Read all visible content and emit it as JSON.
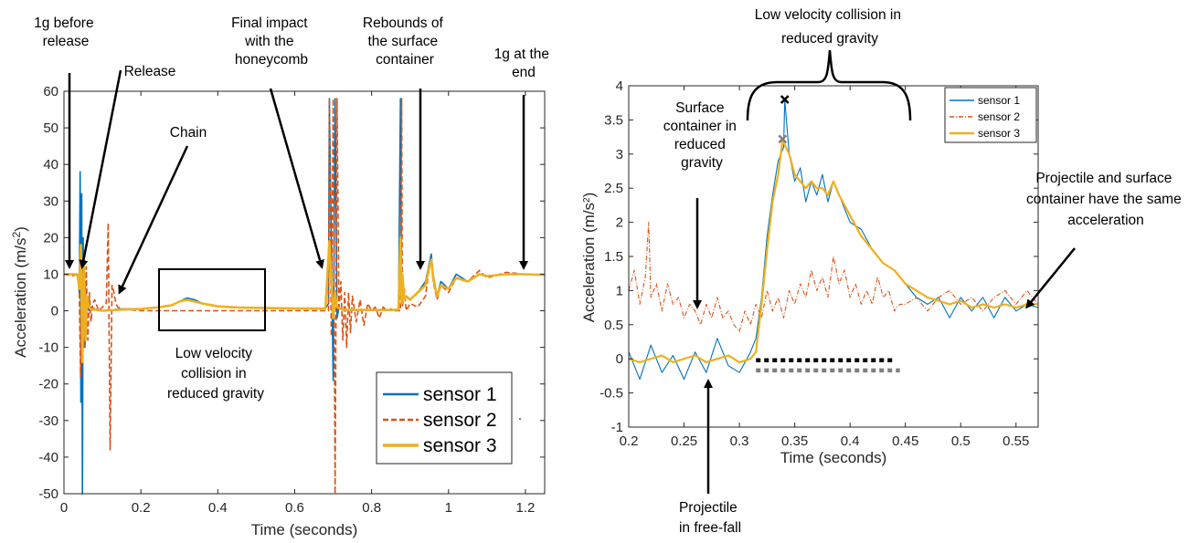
{
  "chart_data": [
    {
      "type": "line",
      "xlabel": "Time (seconds)",
      "ylabel": "Acceleration (m/s",
      "ylabel_sup": "2",
      "ylabel_close": ")",
      "xlim": [
        0,
        1.25
      ],
      "ylim": [
        -50,
        60
      ],
      "xticks": [
        0,
        0.2,
        0.4,
        0.6,
        0.8,
        1,
        1.2
      ],
      "xtick_labels": [
        "0",
        "0.2",
        "0.4",
        "0.6",
        "0.8",
        "1",
        "1.2"
      ],
      "yticks": [
        -50,
        -40,
        -30,
        -20,
        -10,
        0,
        10,
        20,
        30,
        40,
        50,
        60
      ],
      "ytick_labels": [
        "-50",
        "-40",
        "-30",
        "-20",
        "-10",
        "0",
        "10",
        "20",
        "30",
        "40",
        "50",
        "60"
      ],
      "legend_position": "bottom-right",
      "series": [
        {
          "name": "sensor 1",
          "color": "#0072BD",
          "style": "solid",
          "x": [
            0,
            0.02,
            0.035,
            0.04,
            0.042,
            0.044,
            0.046,
            0.048,
            0.05,
            0.052,
            0.055,
            0.058,
            0.06,
            0.065,
            0.07,
            0.08,
            0.1,
            0.15,
            0.2,
            0.25,
            0.28,
            0.3,
            0.32,
            0.34,
            0.36,
            0.38,
            0.4,
            0.45,
            0.5,
            0.55,
            0.6,
            0.68,
            0.688,
            0.69,
            0.7,
            0.705,
            0.71,
            0.715,
            0.72,
            0.73,
            0.74,
            0.76,
            0.8,
            0.85,
            0.87,
            0.875,
            0.878,
            0.88,
            0.885,
            0.89,
            0.9,
            0.92,
            0.94,
            0.95,
            0.955,
            0.96,
            0.97,
            0.98,
            1.0,
            1.02,
            1.05,
            1.08,
            1.1,
            1.15,
            1.2,
            1.25
          ],
          "y": [
            10,
            10,
            10,
            5,
            38,
            -25,
            32,
            -50,
            20,
            -10,
            8,
            -5,
            2,
            0,
            1,
            0.5,
            0,
            0.5,
            0.5,
            1,
            1.5,
            2.5,
            3.5,
            3,
            2,
            1.5,
            1.2,
            0.9,
            0.8,
            0.7,
            0.6,
            0.6,
            2,
            58,
            -19,
            58,
            -2,
            1,
            0.5,
            0.3,
            0.2,
            0.2,
            0.2,
            0.2,
            0.3,
            58,
            2,
            10,
            3,
            4,
            3,
            5,
            8,
            13,
            15.5,
            10,
            4,
            8,
            6,
            10,
            8,
            10,
            9.5,
            10,
            10,
            9.8
          ]
        },
        {
          "name": "sensor 2",
          "color": "#D95319",
          "style": "dashed",
          "x": [
            0,
            0.02,
            0.035,
            0.04,
            0.043,
            0.046,
            0.049,
            0.052,
            0.055,
            0.058,
            0.062,
            0.066,
            0.07,
            0.075,
            0.08,
            0.09,
            0.1,
            0.11,
            0.115,
            0.12,
            0.125,
            0.13,
            0.135,
            0.14,
            0.15,
            0.2,
            0.25,
            0.3,
            0.35,
            0.4,
            0.45,
            0.5,
            0.55,
            0.6,
            0.68,
            0.688,
            0.69,
            0.695,
            0.7,
            0.705,
            0.71,
            0.715,
            0.72,
            0.725,
            0.73,
            0.735,
            0.74,
            0.745,
            0.75,
            0.76,
            0.77,
            0.78,
            0.79,
            0.8,
            0.81,
            0.82,
            0.83,
            0.84,
            0.85,
            0.86,
            0.87,
            0.875,
            0.878,
            0.88,
            0.885,
            0.89,
            0.9,
            0.92,
            0.94,
            0.95,
            0.955,
            0.96,
            0.97,
            0.98,
            1.0,
            1.02,
            1.05,
            1.08,
            1.1,
            1.15,
            1.2,
            1.25
          ],
          "y": [
            10,
            9.5,
            10,
            5,
            -18,
            15,
            -5,
            8,
            -10,
            12,
            -8,
            5,
            -3,
            2,
            3,
            0,
            1,
            2,
            24,
            -38,
            7,
            5,
            2,
            1,
            0.5,
            0,
            0,
            0,
            0,
            0,
            0,
            0,
            0,
            0,
            0,
            0,
            58,
            -7,
            58,
            -50,
            58,
            0,
            8,
            -8,
            5,
            -10,
            5,
            -6,
            4,
            -3,
            3,
            -4,
            2,
            0,
            1,
            -2,
            1,
            0,
            0.5,
            0,
            0,
            0,
            58,
            1,
            6,
            0,
            2,
            1,
            4,
            12,
            14,
            8,
            3,
            7,
            5,
            9,
            8,
            11,
            9,
            10.5,
            10,
            10
          ]
        },
        {
          "name": "sensor 3",
          "color": "#EDB120",
          "style": "solid",
          "x": [
            0,
            0.02,
            0.035,
            0.04,
            0.044,
            0.048,
            0.052,
            0.056,
            0.06,
            0.065,
            0.07,
            0.08,
            0.1,
            0.15,
            0.2,
            0.25,
            0.28,
            0.3,
            0.32,
            0.34,
            0.36,
            0.4,
            0.45,
            0.5,
            0.55,
            0.6,
            0.68,
            0.688,
            0.69,
            0.7,
            0.705,
            0.71,
            0.72,
            0.73,
            0.76,
            0.8,
            0.85,
            0.87,
            0.875,
            0.878,
            0.88,
            0.885,
            0.89,
            0.9,
            0.92,
            0.94,
            0.95,
            0.955,
            0.96,
            0.97,
            0.98,
            1.0,
            1.02,
            1.05,
            1.08,
            1.1,
            1.15,
            1.2,
            1.25
          ],
          "y": [
            10,
            10,
            10,
            6,
            18,
            -14,
            12,
            -8,
            4,
            1,
            0.5,
            0.3,
            0,
            0.3,
            0.5,
            1,
            1.5,
            2.5,
            3,
            2.5,
            2,
            1.2,
            0.9,
            0.8,
            0.7,
            0.6,
            0.6,
            15,
            19,
            -2,
            5,
            1,
            0.5,
            0.3,
            0.2,
            0.2,
            0.2,
            0.3,
            20,
            2,
            10,
            3,
            4,
            3,
            5,
            7,
            12,
            14,
            9,
            4,
            7,
            6,
            9,
            8,
            10,
            9.5,
            10,
            10,
            9.8
          ]
        }
      ]
    },
    {
      "type": "line",
      "xlabel": "Time (seconds)",
      "ylabel": "Acceleration (m/s",
      "ylabel_sup": "2",
      "ylabel_close": ")",
      "xlim": [
        0.2,
        0.57
      ],
      "ylim": [
        -1,
        4
      ],
      "xticks": [
        0.2,
        0.25,
        0.3,
        0.35,
        0.4,
        0.45,
        0.5,
        0.55
      ],
      "xtick_labels": [
        "0.2",
        "0.25",
        "0.3",
        "0.35",
        "0.4",
        "0.45",
        "0.5",
        "0.55"
      ],
      "yticks": [
        -1,
        -0.5,
        0,
        0.5,
        1,
        1.5,
        2,
        2.5,
        3,
        3.5,
        4
      ],
      "ytick_labels": [
        "-1",
        "-0.5",
        "0",
        "0.5",
        "1",
        "1.5",
        "2",
        "2.5",
        "3",
        "3.5",
        "4"
      ],
      "legend_position": "top-right",
      "markers": [
        {
          "x": 0.341,
          "y": 3.8,
          "color": "#000000"
        },
        {
          "x": 0.339,
          "y": 3.22,
          "color": "#7f7f7f"
        }
      ],
      "segments": [
        {
          "x0": 0.315,
          "x1": 0.44,
          "y": -0.02,
          "color": "#000000"
        },
        {
          "x0": 0.315,
          "x1": 0.445,
          "y": -0.17,
          "color": "#7f7f7f"
        }
      ],
      "series": [
        {
          "name": "sensor 1",
          "color": "#0072BD",
          "style": "solid",
          "x": [
            0.2,
            0.21,
            0.22,
            0.23,
            0.24,
            0.25,
            0.26,
            0.27,
            0.28,
            0.29,
            0.3,
            0.31,
            0.315,
            0.32,
            0.325,
            0.33,
            0.335,
            0.34,
            0.341,
            0.345,
            0.35,
            0.355,
            0.36,
            0.365,
            0.37,
            0.375,
            0.38,
            0.385,
            0.39,
            0.4,
            0.41,
            0.42,
            0.43,
            0.44,
            0.45,
            0.46,
            0.47,
            0.48,
            0.49,
            0.5,
            0.51,
            0.52,
            0.53,
            0.54,
            0.55,
            0.56,
            0.57
          ],
          "y": [
            0.1,
            -0.3,
            0.2,
            -0.2,
            0.05,
            -0.3,
            0.1,
            -0.2,
            0.3,
            -0.1,
            -0.2,
            0.1,
            0.3,
            0.9,
            1.8,
            2.4,
            2.9,
            3.1,
            3.8,
            3.0,
            2.6,
            2.8,
            2.3,
            2.6,
            2.4,
            2.7,
            2.3,
            2.6,
            2.4,
            2.0,
            1.9,
            1.6,
            1.4,
            1.3,
            1.1,
            0.9,
            0.8,
            0.9,
            0.6,
            0.9,
            0.7,
            0.9,
            0.6,
            0.9,
            0.7,
            0.8,
            0.75
          ]
        },
        {
          "name": "sensor 2",
          "color": "#D95319",
          "style": "dashed",
          "x": [
            0.2,
            0.205,
            0.21,
            0.215,
            0.218,
            0.22,
            0.225,
            0.23,
            0.235,
            0.24,
            0.245,
            0.25,
            0.255,
            0.26,
            0.265,
            0.27,
            0.275,
            0.28,
            0.285,
            0.29,
            0.295,
            0.3,
            0.305,
            0.31,
            0.315,
            0.32,
            0.325,
            0.33,
            0.335,
            0.34,
            0.345,
            0.35,
            0.355,
            0.36,
            0.365,
            0.37,
            0.375,
            0.38,
            0.385,
            0.39,
            0.395,
            0.4,
            0.405,
            0.41,
            0.415,
            0.42,
            0.425,
            0.43,
            0.435,
            0.44,
            0.445,
            0.45,
            0.46,
            0.47,
            0.48,
            0.49,
            0.5,
            0.51,
            0.52,
            0.53,
            0.54,
            0.55,
            0.56,
            0.57
          ],
          "y": [
            1.0,
            1.3,
            0.8,
            1.2,
            2.0,
            0.9,
            1.1,
            0.7,
            1.1,
            0.8,
            0.9,
            0.6,
            0.8,
            0.7,
            0.5,
            0.8,
            0.6,
            0.9,
            0.6,
            0.7,
            0.5,
            0.4,
            0.7,
            0.5,
            0.8,
            0.6,
            1.0,
            0.7,
            0.9,
            0.6,
            1.0,
            0.8,
            1.1,
            0.9,
            1.3,
            1.0,
            1.2,
            0.9,
            1.5,
            1.1,
            1.3,
            0.9,
            1.1,
            0.8,
            1.0,
            0.8,
            1.2,
            0.9,
            1.0,
            0.7,
            0.8,
            0.8,
            0.9,
            0.7,
            0.9,
            1.0,
            0.8,
            0.9,
            0.7,
            0.9,
            1.0,
            0.8,
            1.0,
            0.8
          ]
        },
        {
          "name": "sensor 3",
          "color": "#EDB120",
          "style": "solid",
          "x": [
            0.2,
            0.21,
            0.22,
            0.23,
            0.24,
            0.25,
            0.26,
            0.27,
            0.28,
            0.29,
            0.3,
            0.31,
            0.315,
            0.32,
            0.325,
            0.33,
            0.335,
            0.339,
            0.345,
            0.35,
            0.355,
            0.36,
            0.365,
            0.37,
            0.375,
            0.38,
            0.385,
            0.39,
            0.4,
            0.41,
            0.42,
            0.43,
            0.44,
            0.45,
            0.46,
            0.47,
            0.48,
            0.49,
            0.5,
            0.51,
            0.52,
            0.53,
            0.54,
            0.55,
            0.56,
            0.57
          ],
          "y": [
            0,
            -0.05,
            0,
            0.05,
            -0.05,
            0,
            0.05,
            -0.05,
            0,
            0.05,
            -0.05,
            0,
            0.1,
            0.8,
            1.6,
            2.3,
            2.7,
            3.2,
            3.0,
            2.7,
            2.6,
            2.5,
            2.6,
            2.5,
            2.5,
            2.4,
            2.6,
            2.4,
            2.1,
            1.8,
            1.6,
            1.4,
            1.3,
            1.1,
            1.0,
            0.9,
            0.85,
            0.8,
            0.85,
            0.75,
            0.8,
            0.75,
            0.8,
            0.75,
            0.8,
            0.8
          ]
        }
      ]
    }
  ],
  "legend": {
    "items": [
      "sensor 1",
      "sensor 2",
      "sensor 3"
    ]
  },
  "annotations_left": {
    "before_release": [
      "1g before",
      "release"
    ],
    "release": [
      "Release"
    ],
    "chain": [
      "Chain"
    ],
    "final_impact": [
      "Final impact",
      "with the",
      "honeycomb"
    ],
    "rebounds": [
      "Rebounds of",
      "the surface",
      "container"
    ],
    "end": [
      "1g at the",
      "end"
    ],
    "low_velocity": [
      "Low velocity",
      "collision  in",
      "reduced gravity"
    ]
  },
  "annotations_right": {
    "top": [
      "Low velocity collision in",
      "reduced gravity"
    ],
    "surface": [
      "Surface",
      "container in",
      "reduced",
      "gravity"
    ],
    "same_accel": [
      "Projectile and surface",
      "container have the same",
      "acceleration"
    ],
    "freefall": [
      "Projectile",
      "in free-fall"
    ]
  },
  "colors": {
    "sensor1": "#0072BD",
    "sensor2": "#D95319",
    "sensor3": "#EDB120"
  }
}
